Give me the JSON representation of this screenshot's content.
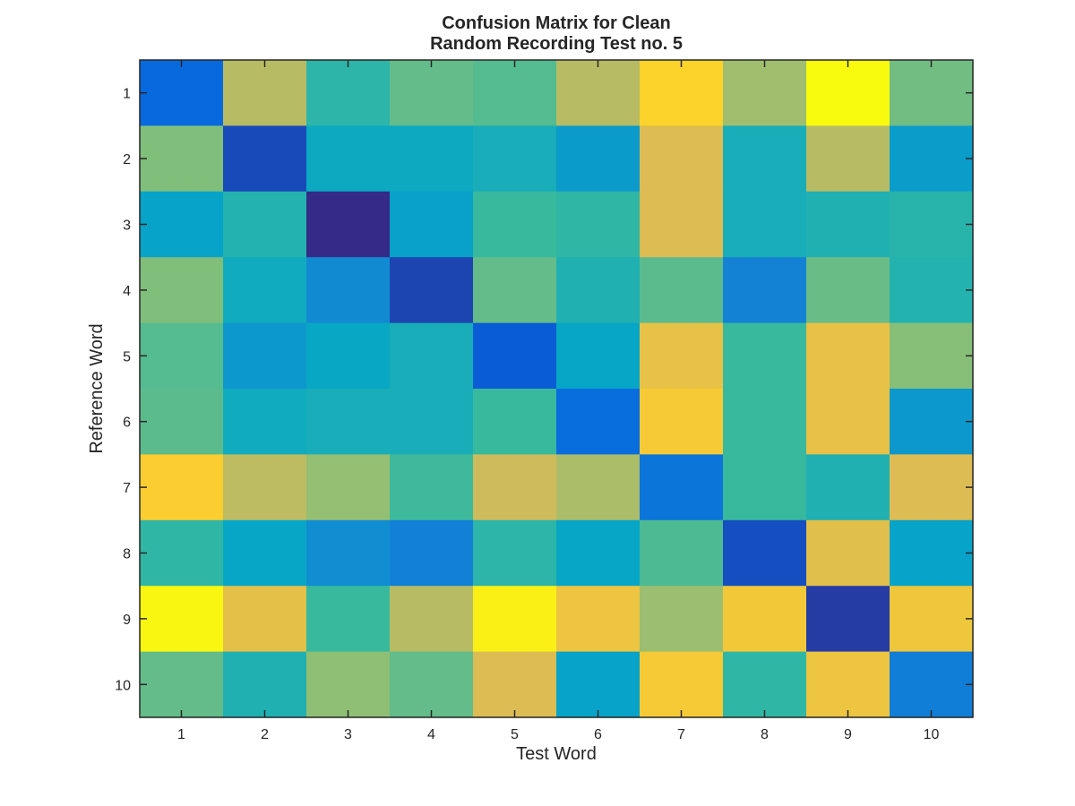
{
  "chart_data": {
    "type": "heatmap",
    "title_lines": [
      "Confusion Matrix for Clean",
      "Random Recording Test no. 5"
    ],
    "xlabel": "Test Word",
    "ylabel": "Reference Word",
    "x_ticks": [
      "1",
      "2",
      "3",
      "4",
      "5",
      "6",
      "7",
      "8",
      "9",
      "10"
    ],
    "y_ticks": [
      "1",
      "2",
      "3",
      "4",
      "5",
      "6",
      "7",
      "8",
      "9",
      "10"
    ],
    "colormap": "parula",
    "values": [
      [
        0.15,
        0.69,
        0.47,
        0.56,
        0.54,
        0.69,
        0.89,
        0.65,
        1.0,
        0.58
      ],
      [
        0.6,
        0.07,
        0.39,
        0.39,
        0.42,
        0.33,
        0.76,
        0.42,
        0.69,
        0.34
      ],
      [
        0.36,
        0.45,
        0.0,
        0.35,
        0.5,
        0.48,
        0.76,
        0.42,
        0.44,
        0.46
      ],
      [
        0.6,
        0.4,
        0.27,
        0.06,
        0.56,
        0.44,
        0.55,
        0.24,
        0.57,
        0.45
      ],
      [
        0.54,
        0.32,
        0.38,
        0.42,
        0.11,
        0.37,
        0.8,
        0.5,
        0.8,
        0.61
      ],
      [
        0.55,
        0.4,
        0.42,
        0.42,
        0.5,
        0.16,
        0.85,
        0.5,
        0.8,
        0.32
      ],
      [
        0.87,
        0.7,
        0.63,
        0.51,
        0.73,
        0.67,
        0.19,
        0.5,
        0.44,
        0.76
      ],
      [
        0.48,
        0.37,
        0.28,
        0.23,
        0.47,
        0.37,
        0.53,
        0.08,
        0.78,
        0.36
      ],
      [
        0.99,
        0.79,
        0.5,
        0.69,
        0.97,
        0.82,
        0.64,
        0.84,
        0.04,
        0.83
      ],
      [
        0.56,
        0.44,
        0.62,
        0.56,
        0.76,
        0.36,
        0.85,
        0.48,
        0.82,
        0.22
      ]
    ]
  }
}
